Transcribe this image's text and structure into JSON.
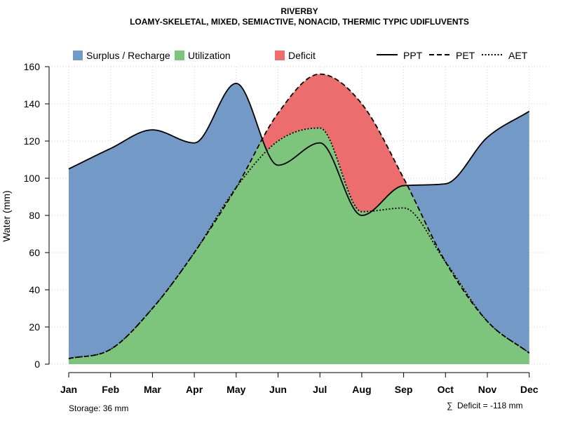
{
  "chart_data": {
    "type": "area",
    "title": "RIVERBY",
    "subtitle": "LOAMY-SKELETAL, MIXED, SEMIACTIVE, NONACID, THERMIC TYPIC UDIFLUVENTS",
    "xlabel": "",
    "ylabel": "Water (mm)",
    "ylim": [
      0,
      160
    ],
    "yticks": [
      0,
      20,
      40,
      60,
      80,
      100,
      120,
      140,
      160
    ],
    "categories": [
      "Jan",
      "Feb",
      "Mar",
      "Apr",
      "May",
      "Jun",
      "Jul",
      "Aug",
      "Sep",
      "Oct",
      "Nov",
      "Dec"
    ],
    "series": [
      {
        "name": "PPT",
        "line_style": "solid",
        "values": [
          105,
          116,
          126,
          119,
          151,
          107,
          119,
          80,
          96,
          97,
          122,
          136
        ]
      },
      {
        "name": "PET",
        "line_style": "dashed",
        "values": [
          3,
          8,
          30,
          60,
          95,
          135,
          156,
          140,
          100,
          55,
          23,
          6
        ]
      },
      {
        "name": "AET",
        "line_style": "dotted",
        "values": [
          3,
          8,
          30,
          60,
          95,
          120,
          127,
          82,
          84,
          55,
          23,
          6
        ]
      }
    ],
    "areas": [
      {
        "name": "Surplus / Recharge",
        "color": "#7399C6"
      },
      {
        "name": "Utilization",
        "color": "#7DC47D"
      },
      {
        "name": "Deficit",
        "color": "#EB6D6D"
      }
    ],
    "legend_position": "top",
    "grid": true
  },
  "footer": {
    "storage": "Storage: 36 mm",
    "deficit_symbol": "∑",
    "deficit": "Deficit = -118 mm"
  }
}
